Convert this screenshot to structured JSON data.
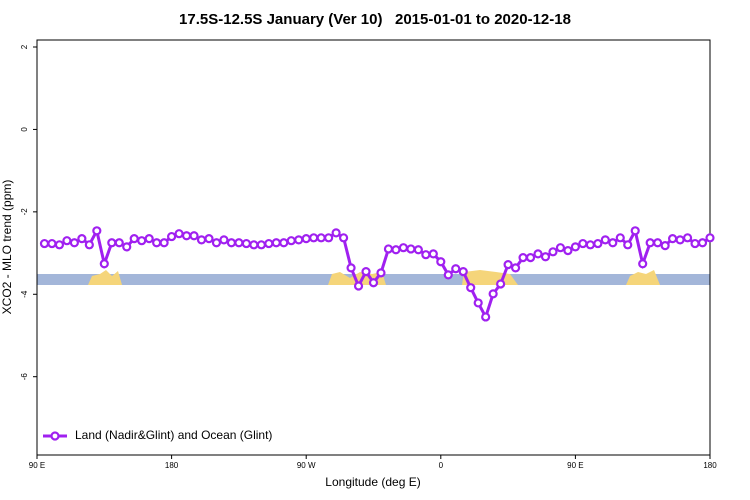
{
  "chart_data": {
    "type": "line",
    "title": "17.5S-12.5S January (Ver 10)   2015-01-01 to 2020-12-18",
    "xlabel": "Longitude (deg E)",
    "ylabel": "XCO2 - MLO trend (ppm)",
    "x": [
      95,
      100,
      105,
      110,
      115,
      120,
      125,
      130,
      135,
      140,
      145,
      150,
      155,
      160,
      165,
      170,
      175,
      180,
      185,
      190,
      195,
      200,
      205,
      210,
      215,
      220,
      225,
      230,
      235,
      240,
      245,
      250,
      255,
      260,
      265,
      270,
      275,
      280,
      285,
      290,
      295,
      300,
      305,
      310,
      315,
      320,
      325,
      330,
      335,
      340,
      345,
      350,
      355,
      360,
      365,
      370,
      375,
      380,
      385,
      390,
      395,
      400,
      405,
      410,
      415,
      420,
      425,
      430,
      435,
      440,
      445,
      450,
      455,
      460,
      465,
      470,
      475,
      480,
      485,
      490,
      495,
      500,
      505,
      510,
      515,
      520,
      525,
      530,
      535,
      540
    ],
    "series": [
      {
        "name": "Land (Nadir&Glint) and Ocean (Glint)",
        "color": "#a020f0",
        "values": [
          -2.77,
          -2.77,
          -2.8,
          -2.7,
          -2.75,
          -2.65,
          -2.8,
          -2.46,
          -3.26,
          -2.75,
          -2.75,
          -2.85,
          -2.65,
          -2.7,
          -2.65,
          -2.75,
          -2.75,
          -2.6,
          -2.53,
          -2.58,
          -2.58,
          -2.68,
          -2.65,
          -2.75,
          -2.68,
          -2.75,
          -2.75,
          -2.77,
          -2.8,
          -2.8,
          -2.77,
          -2.75,
          -2.75,
          -2.7,
          -2.68,
          -2.65,
          -2.63,
          -2.63,
          -2.63,
          -2.51,
          -2.63,
          -3.36,
          -3.8,
          -3.45,
          -3.72,
          -3.48,
          -2.9,
          -2.92,
          -2.87,
          -2.9,
          -2.92,
          -3.04,
          -3.02,
          -3.21,
          -3.53,
          -3.38,
          -3.45,
          -3.84,
          -4.21,
          -4.55,
          -3.99,
          -3.75,
          -3.28,
          -3.36,
          -3.11,
          -3.11,
          -3.02,
          -3.09,
          -2.97,
          -2.87,
          -2.94,
          -2.85,
          -2.77,
          -2.8,
          -2.77,
          -2.68,
          -2.75,
          -2.63,
          -2.8,
          -2.46,
          -3.26,
          -2.75,
          -2.75,
          -2.82,
          -2.65,
          -2.68,
          -2.63,
          -2.77,
          -2.75,
          -2.63
        ]
      }
    ],
    "xlim": [
      90,
      540
    ],
    "xticks": [
      {
        "value": 90,
        "label": "90 E"
      },
      180,
      {
        "value": 270,
        "label": "90 W"
      },
      {
        "value": 360,
        "label": "0"
      },
      {
        "value": 450,
        "label": "90 E"
      },
      {
        "value": 540,
        "label": "180"
      }
    ],
    "ylim": [
      -7.9,
      2.17
    ],
    "yticks": [
      -6,
      -4,
      -2,
      0,
      2
    ],
    "legend": "bottom-left"
  }
}
